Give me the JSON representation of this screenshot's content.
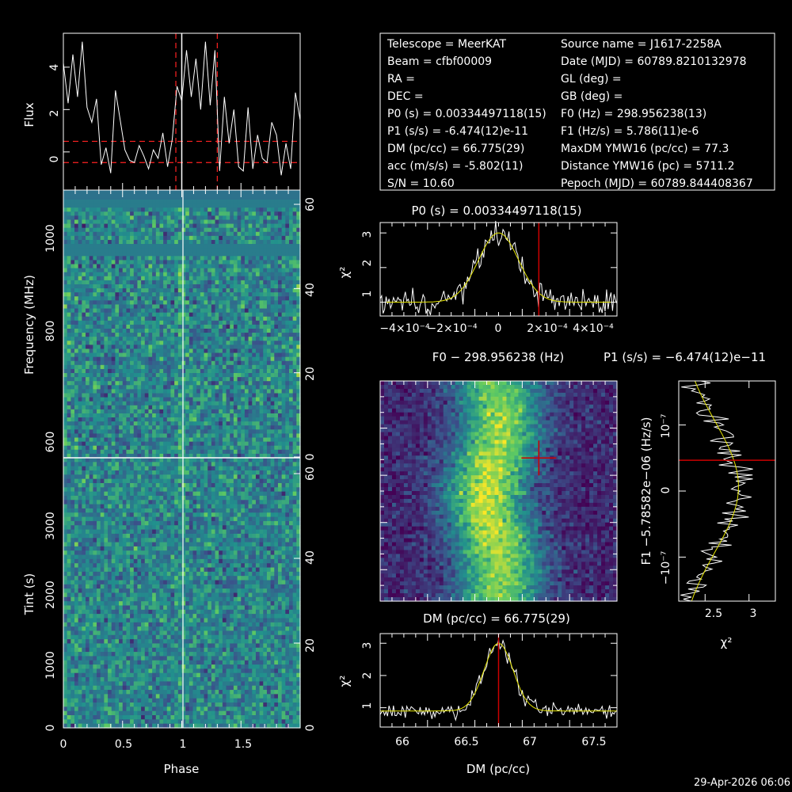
{
  "footer_timestamp": "29-Apr-2026 06:06",
  "info_box": {
    "left": [
      "Telescope = MeerKAT",
      "Beam = cfbf00009",
      "RA =",
      "DEC =",
      "P0 (s) = 0.00334497118(15)",
      "P1 (s/s) = -6.474(12)e-11",
      "DM (pc/cc) = 66.775(29)",
      "acc (m/s/s) = -5.802(11)",
      "S/N = 10.60"
    ],
    "right": [
      "Source name = J1617-2258A",
      "Date (MJD) = 60789.8210132978",
      "GL (deg) =",
      "GB (deg) =",
      "F0 (Hz) = 298.956238(13)",
      "F1 (Hz/s) = 5.786(11)e-6",
      "MaxDM YMW16  (pc/cc) = 77.3",
      "Distance YMW16 (pc) = 5711.2",
      "Pepoch (MJD) = 60789.844408367"
    ]
  },
  "colors": {
    "viridis": [
      "#440154",
      "#3b528b",
      "#21908d",
      "#5dc963",
      "#fde725"
    ],
    "profile_line": "#ffffff",
    "fit_line": "#e6e600",
    "marker": "#cc0000",
    "guide": "#ff2222"
  },
  "chart_data": [
    {
      "id": "profile",
      "type": "line",
      "xlabel": "",
      "ylabel": "Flux",
      "xlim": [
        0,
        2
      ],
      "ylim": [
        -1.8,
        5.6
      ],
      "yticks": [
        "0",
        "2",
        "4"
      ],
      "x_values": [
        0,
        0.04,
        0.08,
        0.12,
        0.16,
        0.2,
        0.24,
        0.28,
        0.32,
        0.36,
        0.4,
        0.44,
        0.48,
        0.52,
        0.56,
        0.6,
        0.64,
        0.68,
        0.72,
        0.76,
        0.8,
        0.84,
        0.88,
        0.92,
        0.96,
        1.0,
        1.04,
        1.08,
        1.12,
        1.16,
        1.2,
        1.24,
        1.28,
        1.32,
        1.36,
        1.4,
        1.44,
        1.48,
        1.52,
        1.56,
        1.6,
        1.64,
        1.68,
        1.72,
        1.76,
        1.8,
        1.84,
        1.88,
        1.92,
        1.96,
        2.0
      ],
      "y_values": [
        4.2,
        2.3,
        4.6,
        2.6,
        5.2,
        2.1,
        1.4,
        2.5,
        -0.6,
        0.2,
        -1.0,
        2.9,
        1.5,
        0.1,
        -0.4,
        -0.5,
        0.3,
        -0.2,
        -0.8,
        0.1,
        -0.3,
        0.9,
        -0.7,
        0.6,
        3.1,
        2.4,
        4.8,
        2.6,
        4.4,
        2.0,
        5.2,
        2.2,
        4.8,
        -0.9,
        2.6,
        0.4,
        2.0,
        -0.7,
        -0.9,
        2.1,
        -0.8,
        0.8,
        -0.3,
        -0.5,
        1.4,
        0.8,
        -1.1,
        0.4,
        -0.8,
        2.8,
        1.5
      ],
      "on_pulse_window": [
        0.95,
        1.3
      ],
      "noise_band": [
        -0.5,
        0.5
      ],
      "marker_phase": 1.0
    },
    {
      "id": "freq_phase",
      "type": "heatmap",
      "ylabel": "Frequency (MHz)",
      "left_ticks": [
        "600",
        "800",
        "1000"
      ],
      "right_ticks": [
        "0",
        "20",
        "40",
        "60"
      ],
      "masked_bands": [
        "sub-band near 1070 MHz",
        "sub-band near 950 MHz"
      ]
    },
    {
      "id": "time_phase",
      "type": "heatmap",
      "xlabel": "Phase",
      "ylabel": "Tint (s)",
      "xlim": [
        0,
        2
      ],
      "xticks": [
        "0",
        "0.5",
        "1",
        "1.5"
      ],
      "left_ticks": [
        "0",
        "1000",
        "2000",
        "3000"
      ],
      "right_ticks": [
        "0",
        "20",
        "40",
        "60"
      ]
    },
    {
      "id": "p0_search",
      "type": "line",
      "title": "P0 (s) = 0.00334497118(15)",
      "ylabel": "χ²",
      "xlim": [
        -0.0005,
        0.0005
      ],
      "ylim": [
        0.6,
        3.3
      ],
      "xticks": [
        "−4×10⁻⁴",
        "−2×10⁻⁴",
        "0",
        "2×10⁻⁴",
        "4×10⁻⁴"
      ],
      "yticks": [
        "1",
        "2",
        "3"
      ],
      "fit_peak": [
        0,
        3.0
      ],
      "fit_baseline": 1.0,
      "marker_x": 0.00017
    },
    {
      "id": "f0_f1_plane",
      "type": "heatmap",
      "title": "F0 − 298.956238 (Hz)",
      "ridge_center_fraction": 0.48,
      "marker": {
        "x_fraction": 0.67,
        "y_fraction": 0.35
      }
    },
    {
      "id": "p1_search",
      "type": "line",
      "title": "P1 (s/s) = −6.474(12)e−11",
      "xlabel": "χ²",
      "ylabel": "F1 −5.78582e−06 (Hz/s)",
      "xlim": [
        2.2,
        3.3
      ],
      "xticks": [
        "2.5",
        "3"
      ],
      "yticks": [
        "10⁻⁷",
        "0",
        "−10⁻⁷"
      ],
      "marker_y_fraction": 0.36
    },
    {
      "id": "dm_search",
      "type": "line",
      "title": "DM (pc/cc) = 66.775(29)",
      "xlabel": "DM (pc/cc)",
      "ylabel": "χ²",
      "xlim": [
        65.85,
        67.7
      ],
      "ylim": [
        0.4,
        3.3
      ],
      "xticks": [
        "66",
        "66.5",
        "67",
        "67.5"
      ],
      "yticks": [
        "1",
        "2",
        "3"
      ],
      "fit_peak": [
        66.775,
        3.0
      ],
      "fit_baseline": 0.9,
      "marker_x": 66.775
    }
  ]
}
